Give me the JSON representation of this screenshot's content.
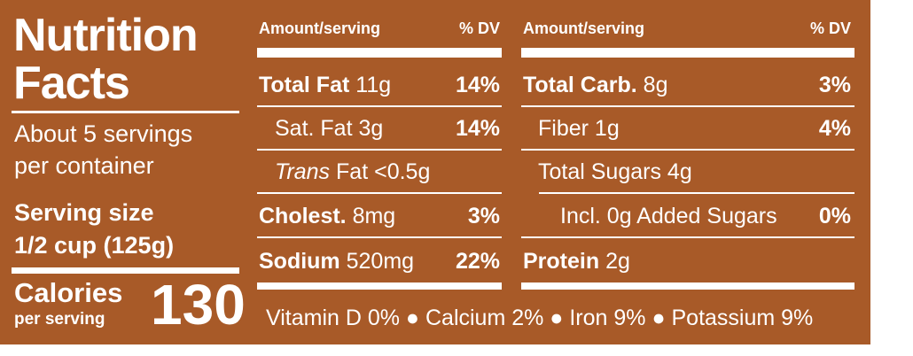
{
  "colors": {
    "background": "#a85a28",
    "text": "#ffffff"
  },
  "left": {
    "title_line1": "Nutrition",
    "title_line2": "Facts",
    "servings_line1": "About 5 servings",
    "servings_line2": "per container",
    "serving_size_label": "Serving size",
    "serving_size_value": "1/2 cup (125g)",
    "calories_label": "Calories",
    "per_serving_label": "per serving",
    "calories_value": "130"
  },
  "columns": {
    "header_amount": "Amount/serving",
    "header_dv": "% DV"
  },
  "left_column": [
    {
      "name": "Total Fat",
      "amount": "11g",
      "dv": "14%"
    },
    {
      "name": "Sat. Fat",
      "amount": "3g",
      "dv": "14%"
    },
    {
      "name_italic": "Trans",
      "name": "Fat",
      "amount": "<0.5g",
      "dv": ""
    },
    {
      "name": "Cholest.",
      "amount": "8mg",
      "dv": "3%"
    },
    {
      "name": "Sodium",
      "amount": "520mg",
      "dv": "22%"
    }
  ],
  "right_column": [
    {
      "name": "Total Carb.",
      "amount": "8g",
      "dv": "3%"
    },
    {
      "name": "Fiber",
      "amount": "1g",
      "dv": "4%"
    },
    {
      "name": "Total Sugars",
      "amount": "4g",
      "dv": ""
    },
    {
      "name": "Incl. 0g Added Sugars",
      "amount": "",
      "dv": "0%"
    },
    {
      "name": "Protein",
      "amount": "2g",
      "dv": ""
    }
  ],
  "vitamins": "Vitamin D 0% ● Calcium 2% ● Iron 9% ● Potassium 9%"
}
